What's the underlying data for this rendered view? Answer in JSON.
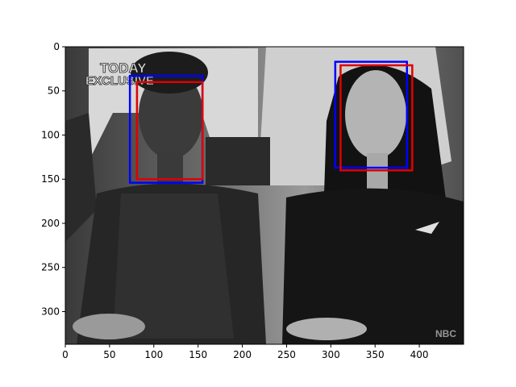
{
  "chart_data": {
    "type": "image",
    "title": "",
    "xlabel": "",
    "ylabel": "",
    "xlim": [
      0,
      450
    ],
    "ylim": [
      337,
      0
    ],
    "x_ticks": [
      0,
      50,
      100,
      150,
      200,
      250,
      300,
      350,
      400
    ],
    "y_ticks": [
      0,
      50,
      100,
      150,
      200,
      250,
      300
    ],
    "image_description": "Grayscale TV photo of two young women seated in an audience",
    "overlay_text": [
      "TODAY",
      "EXCLUSIVE",
      "NBC"
    ],
    "boxes": [
      {
        "label": "",
        "color": "#0000ff",
        "x0": 73,
        "y0": 33,
        "x1": 155,
        "y1": 154
      },
      {
        "label": "",
        "color": "#e00000",
        "x0": 81,
        "y0": 40,
        "x1": 155,
        "y1": 150
      },
      {
        "label": "",
        "color": "#0000ff",
        "x0": 305,
        "y0": 17,
        "x1": 386,
        "y1": 137
      },
      {
        "label": "",
        "color": "#e00000",
        "x0": 311,
        "y0": 21,
        "x1": 392,
        "y1": 140
      }
    ]
  }
}
